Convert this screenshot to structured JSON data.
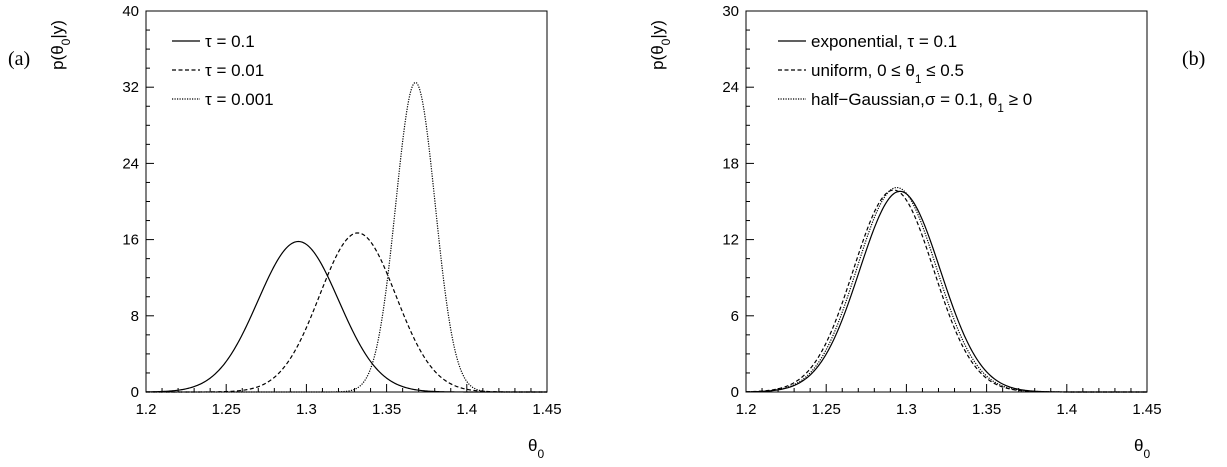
{
  "chart_data": [
    {
      "type": "line",
      "panel_label": "(a)",
      "xlabel": "θ0",
      "ylabel": "p(θ0|y)",
      "xlim": [
        1.2,
        1.45
      ],
      "ylim": [
        0,
        40
      ],
      "xticks": [
        "1.2",
        "1.25",
        "1.3",
        "1.35",
        "1.4",
        "1.45"
      ],
      "yticks": [
        "0",
        "8",
        "16",
        "24",
        "32",
        "40"
      ],
      "grid": false,
      "legend_position": "top-left",
      "series": [
        {
          "name": "τ = 0.1",
          "dash": "solid",
          "peak_x": 1.295,
          "peak_y": 15.8,
          "sigma": 0.0252
        },
        {
          "name": "τ = 0.01",
          "dash": "dashed",
          "peak_x": 1.332,
          "peak_y": 16.7,
          "sigma": 0.0238
        },
        {
          "name": "τ = 0.001",
          "dash": "dotted",
          "peak_x": 1.368,
          "peak_y": 32.5,
          "sigma": 0.0123
        }
      ]
    },
    {
      "type": "line",
      "panel_label": "(b)",
      "xlabel": "θ0",
      "ylabel": "p(θ0|y)",
      "xlim": [
        1.2,
        1.45
      ],
      "ylim": [
        0,
        30
      ],
      "xticks": [
        "1.2",
        "1.25",
        "1.3",
        "1.35",
        "1.4",
        "1.45"
      ],
      "yticks": [
        "0",
        "6",
        "12",
        "18",
        "24",
        "30"
      ],
      "grid": false,
      "legend_position": "top-left",
      "series": [
        {
          "name": "exponential, τ = 0.1",
          "dash": "solid",
          "peak_x": 1.296,
          "peak_y": 15.8,
          "sigma": 0.0252
        },
        {
          "name": "uniform, 0 ≤ θ1 ≤ 0.5",
          "dash": "dashed",
          "peak_x": 1.292,
          "peak_y": 15.9,
          "sigma": 0.025
        },
        {
          "name": "half−Gaussian,σ = 0.1, θ1 ≥ 0",
          "dash": "dotted",
          "peak_x": 1.294,
          "peak_y": 16.1,
          "sigma": 0.0248
        }
      ]
    }
  ]
}
